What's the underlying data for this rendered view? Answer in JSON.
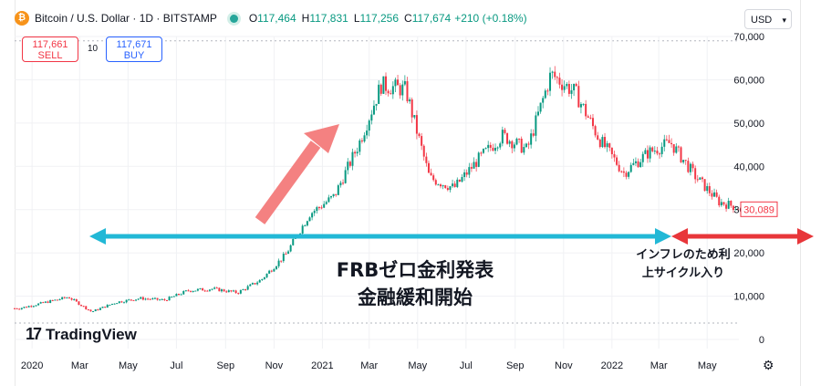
{
  "header": {
    "symbol": "Bitcoin / U.S. Dollar · 1D · BITSTAMP",
    "btc_icon": "bitcoin-icon",
    "open_label": "O",
    "open": "117,464",
    "high_label": "H",
    "high": "117,831",
    "low_label": "L",
    "low": "117,256",
    "close_label": "C",
    "close": "117,674",
    "change": "+210 (+0.18%)",
    "currency": "USD"
  },
  "trade": {
    "sell_price": "117,661",
    "sell_label": "SELL",
    "buy_price": "117,671",
    "buy_label": "BUY",
    "spread": "10"
  },
  "logo_text": "TradingView",
  "colors": {
    "up": "#089981",
    "down": "#f23645",
    "annotation_blue": "#22b8d6",
    "annotation_red": "#e8363a",
    "arrow_pink": "#f48181",
    "price_tag": "#f23645"
  },
  "annotations": {
    "main_line1": "FRBゼロ金利発表",
    "main_line2": "金融緩和開始",
    "right_line1": "インフレのため利",
    "right_line2": "上サイクル入り"
  },
  "chart_data": {
    "type": "candlestick",
    "title": "Bitcoin / U.S. Dollar · 1D · BITSTAMP",
    "ylim": [
      0,
      70000
    ],
    "y_ticks": [
      "0",
      "10,000",
      "20,000",
      "30,000",
      "40,000",
      "50,000",
      "60,000",
      "70,000"
    ],
    "y_tick_values": [
      0,
      10000,
      20000,
      30000,
      40000,
      50000,
      60000,
      70000
    ],
    "x_tick_labels": [
      "2020",
      "Mar",
      "May",
      "Jul",
      "Sep",
      "Nov",
      "2021",
      "Mar",
      "May",
      "Jul",
      "Sep",
      "Nov",
      "2022",
      "Mar",
      "May"
    ],
    "x_tick_dates": [
      "2020-01",
      "2020-03",
      "2020-05",
      "2020-07",
      "2020-09",
      "2020-11",
      "2021-01",
      "2021-03",
      "2021-05",
      "2021-07",
      "2021-09",
      "2021-11",
      "2022-01",
      "2022-03",
      "2022-05"
    ],
    "last_price_label": "30,089",
    "series": [
      {
        "values_monthly_close": [
          {
            "date": "2019-12",
            "value": 7200
          },
          {
            "date": "2020-01",
            "value": 8500
          },
          {
            "date": "2020-02",
            "value": 9800
          },
          {
            "date": "2020-03",
            "value": 6400
          },
          {
            "date": "2020-04",
            "value": 8600
          },
          {
            "date": "2020-05",
            "value": 9500
          },
          {
            "date": "2020-06",
            "value": 9100
          },
          {
            "date": "2020-07",
            "value": 11300
          },
          {
            "date": "2020-08",
            "value": 11700
          },
          {
            "date": "2020-09",
            "value": 10800
          },
          {
            "date": "2020-10",
            "value": 13800
          },
          {
            "date": "2020-11",
            "value": 19700
          },
          {
            "date": "2020-12",
            "value": 29000
          },
          {
            "date": "2021-01",
            "value": 33100
          },
          {
            "date": "2021-02",
            "value": 45200
          },
          {
            "date": "2021-03",
            "value": 58800
          },
          {
            "date": "2021-04",
            "value": 57700
          },
          {
            "date": "2021-05",
            "value": 37300
          },
          {
            "date": "2021-06",
            "value": 35000
          },
          {
            "date": "2021-07",
            "value": 41500
          },
          {
            "date": "2021-08",
            "value": 47100
          },
          {
            "date": "2021-09",
            "value": 43800
          },
          {
            "date": "2021-10",
            "value": 61300
          },
          {
            "date": "2021-11",
            "value": 57000
          },
          {
            "date": "2021-12",
            "value": 46300
          },
          {
            "date": "2022-01",
            "value": 38500
          },
          {
            "date": "2022-02",
            "value": 43200
          },
          {
            "date": "2022-03",
            "value": 45500
          },
          {
            "date": "2022-04",
            "value": 37700
          },
          {
            "date": "2022-05",
            "value": 31800
          },
          {
            "date": "2022-06",
            "value": 30089
          }
        ]
      }
    ]
  }
}
